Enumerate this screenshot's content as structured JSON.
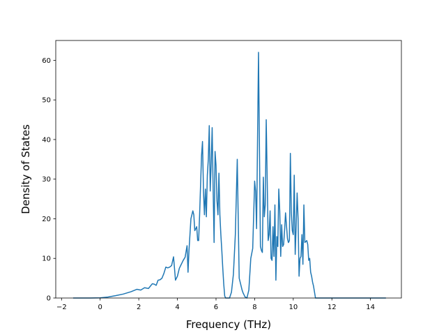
{
  "chart_data": {
    "type": "line",
    "title": "",
    "xlabel": "Frequency (THz)",
    "ylabel": "Density of States",
    "xlim": [
      -2.3,
      15.6
    ],
    "ylim": [
      0,
      65
    ],
    "grid": false,
    "legend": "none",
    "line_color": "#1f77b4",
    "x_ticks": [
      -2,
      0,
      2,
      4,
      6,
      8,
      10,
      12,
      14
    ],
    "x_tick_labels": [
      "−2",
      "0",
      "2",
      "4",
      "6",
      "8",
      "10",
      "12",
      "14"
    ],
    "y_ticks": [
      0,
      10,
      20,
      30,
      40,
      50,
      60
    ],
    "y_tick_labels": [
      "0",
      "10",
      "20",
      "30",
      "40",
      "50",
      "60"
    ],
    "series": [
      {
        "x": [
          -1.4,
          -1.0,
          -0.5,
          0.0,
          0.4,
          0.8,
          1.2,
          1.6,
          1.9,
          2.1,
          2.3,
          2.5,
          2.6,
          2.7,
          2.8,
          2.9,
          3.0,
          3.1,
          3.2,
          3.3,
          3.4,
          3.5,
          3.55,
          3.6,
          3.7,
          3.8,
          3.9,
          4.0,
          4.1,
          4.2,
          4.25,
          4.3,
          4.35,
          4.4,
          4.5,
          4.55,
          4.6,
          4.7,
          4.8,
          4.85,
          4.9,
          5.0,
          5.05,
          5.1,
          5.15,
          5.25,
          5.3,
          5.35,
          5.4,
          5.45,
          5.5,
          5.55,
          5.6,
          5.65,
          5.7,
          5.75,
          5.8,
          5.85,
          5.9,
          5.95,
          6.0,
          6.05,
          6.1,
          6.15,
          6.2,
          6.25,
          6.3,
          6.35,
          6.4,
          6.45,
          6.5,
          6.55,
          6.6,
          6.7,
          6.8,
          6.9,
          7.0,
          7.1,
          7.2,
          7.3,
          7.35,
          7.4,
          7.45,
          7.5,
          7.6,
          7.7,
          7.8,
          7.9,
          8.0,
          8.05,
          8.1,
          8.2,
          8.3,
          8.35,
          8.4,
          8.45,
          8.5,
          8.55,
          8.6,
          8.65,
          8.7,
          8.75,
          8.8,
          8.85,
          8.9,
          8.95,
          9.0,
          9.05,
          9.1,
          9.15,
          9.2,
          9.25,
          9.3,
          9.35,
          9.4,
          9.45,
          9.5,
          9.55,
          9.6,
          9.7,
          9.75,
          9.8,
          9.85,
          9.9,
          9.95,
          10.0,
          10.05,
          10.1,
          10.15,
          10.2,
          10.25,
          10.3,
          10.35,
          10.4,
          10.45,
          10.5,
          10.55,
          10.6,
          10.7,
          10.75,
          10.8,
          10.85,
          10.9,
          10.95,
          11.0,
          11.05,
          11.1,
          11.15,
          11.2,
          11.25,
          11.3,
          11.35,
          11.4,
          11.45,
          11.5,
          11.55,
          11.6,
          11.65,
          11.7,
          11.75,
          11.8,
          11.85,
          11.9,
          11.95,
          12.0,
          12.05,
          12.1,
          12.15,
          12.2,
          12.25,
          12.3,
          12.35,
          12.4,
          12.45,
          12.5,
          12.55,
          12.6,
          12.7,
          12.75,
          12.8,
          12.85,
          12.9,
          13.0,
          13.1,
          13.2,
          13.3,
          13.4,
          13.5,
          13.6,
          13.8,
          14.0,
          14.4,
          14.8
        ],
        "values": [
          0,
          0,
          0,
          0.05,
          0.25,
          0.6,
          1.0,
          1.6,
          2.2,
          2.0,
          2.6,
          2.4,
          3.0,
          3.6,
          3.5,
          3.2,
          4.5,
          4.6,
          5.0,
          6.2,
          7.8,
          7.6,
          7.7,
          7.8,
          8.2,
          10.4,
          4.5,
          5.5,
          7.5,
          8.5,
          9.0,
          9.5,
          9.9,
          10.3,
          13.2,
          6.5,
          12.0,
          20.0,
          22.0,
          21.0,
          17.0,
          18.0,
          14.5,
          14.5,
          21.0,
          36.0,
          39.5,
          27.0,
          21.0,
          27.5,
          20.5,
          31.0,
          35.0,
          43.5,
          27.0,
          34.0,
          43.0,
          27.5,
          14.0,
          37.0,
          33.5,
          24.5,
          21.0,
          31.5,
          21.0,
          16.0,
          12.0,
          7.5,
          3.5,
          0.5,
          0,
          0,
          0,
          0,
          1.5,
          6.0,
          16.0,
          35.0,
          5.0,
          3.0,
          2.0,
          1.3,
          0.8,
          0.3,
          0,
          2.0,
          10.0,
          12.5,
          29.5,
          27.0,
          17.5,
          62.0,
          13.0,
          12.0,
          11.5,
          30.5,
          20.5,
          23.5,
          45.0,
          30.0,
          14.5,
          16.0,
          22.0,
          10.0,
          9.5,
          18.0,
          10.5,
          23.5,
          4.5,
          15.5,
          13.0,
          27.5,
          22.0,
          10.5,
          18.5,
          13.0,
          13.5,
          17.0,
          21.5,
          15.0,
          14.0,
          14.5,
          36.5,
          21.5,
          17.0,
          16.0,
          31.0,
          11.0,
          18.0,
          26.5,
          20.0,
          5.5,
          10.0,
          10.5,
          16.0,
          8.5,
          23.5,
          14.0,
          14.5,
          13.5,
          9.5,
          10.0,
          6.5,
          5.5,
          4.0,
          3.0,
          1.5,
          0,
          0,
          0,
          0,
          0,
          0,
          0,
          0,
          0,
          0,
          0,
          0,
          0,
          0,
          0,
          0,
          0,
          0,
          0,
          0,
          0,
          0,
          0,
          0,
          0,
          0,
          0,
          0,
          0,
          0,
          0,
          0,
          0,
          0,
          0,
          0,
          0,
          0,
          0,
          0,
          0,
          0,
          0,
          0,
          0,
          0
        ]
      }
    ]
  }
}
